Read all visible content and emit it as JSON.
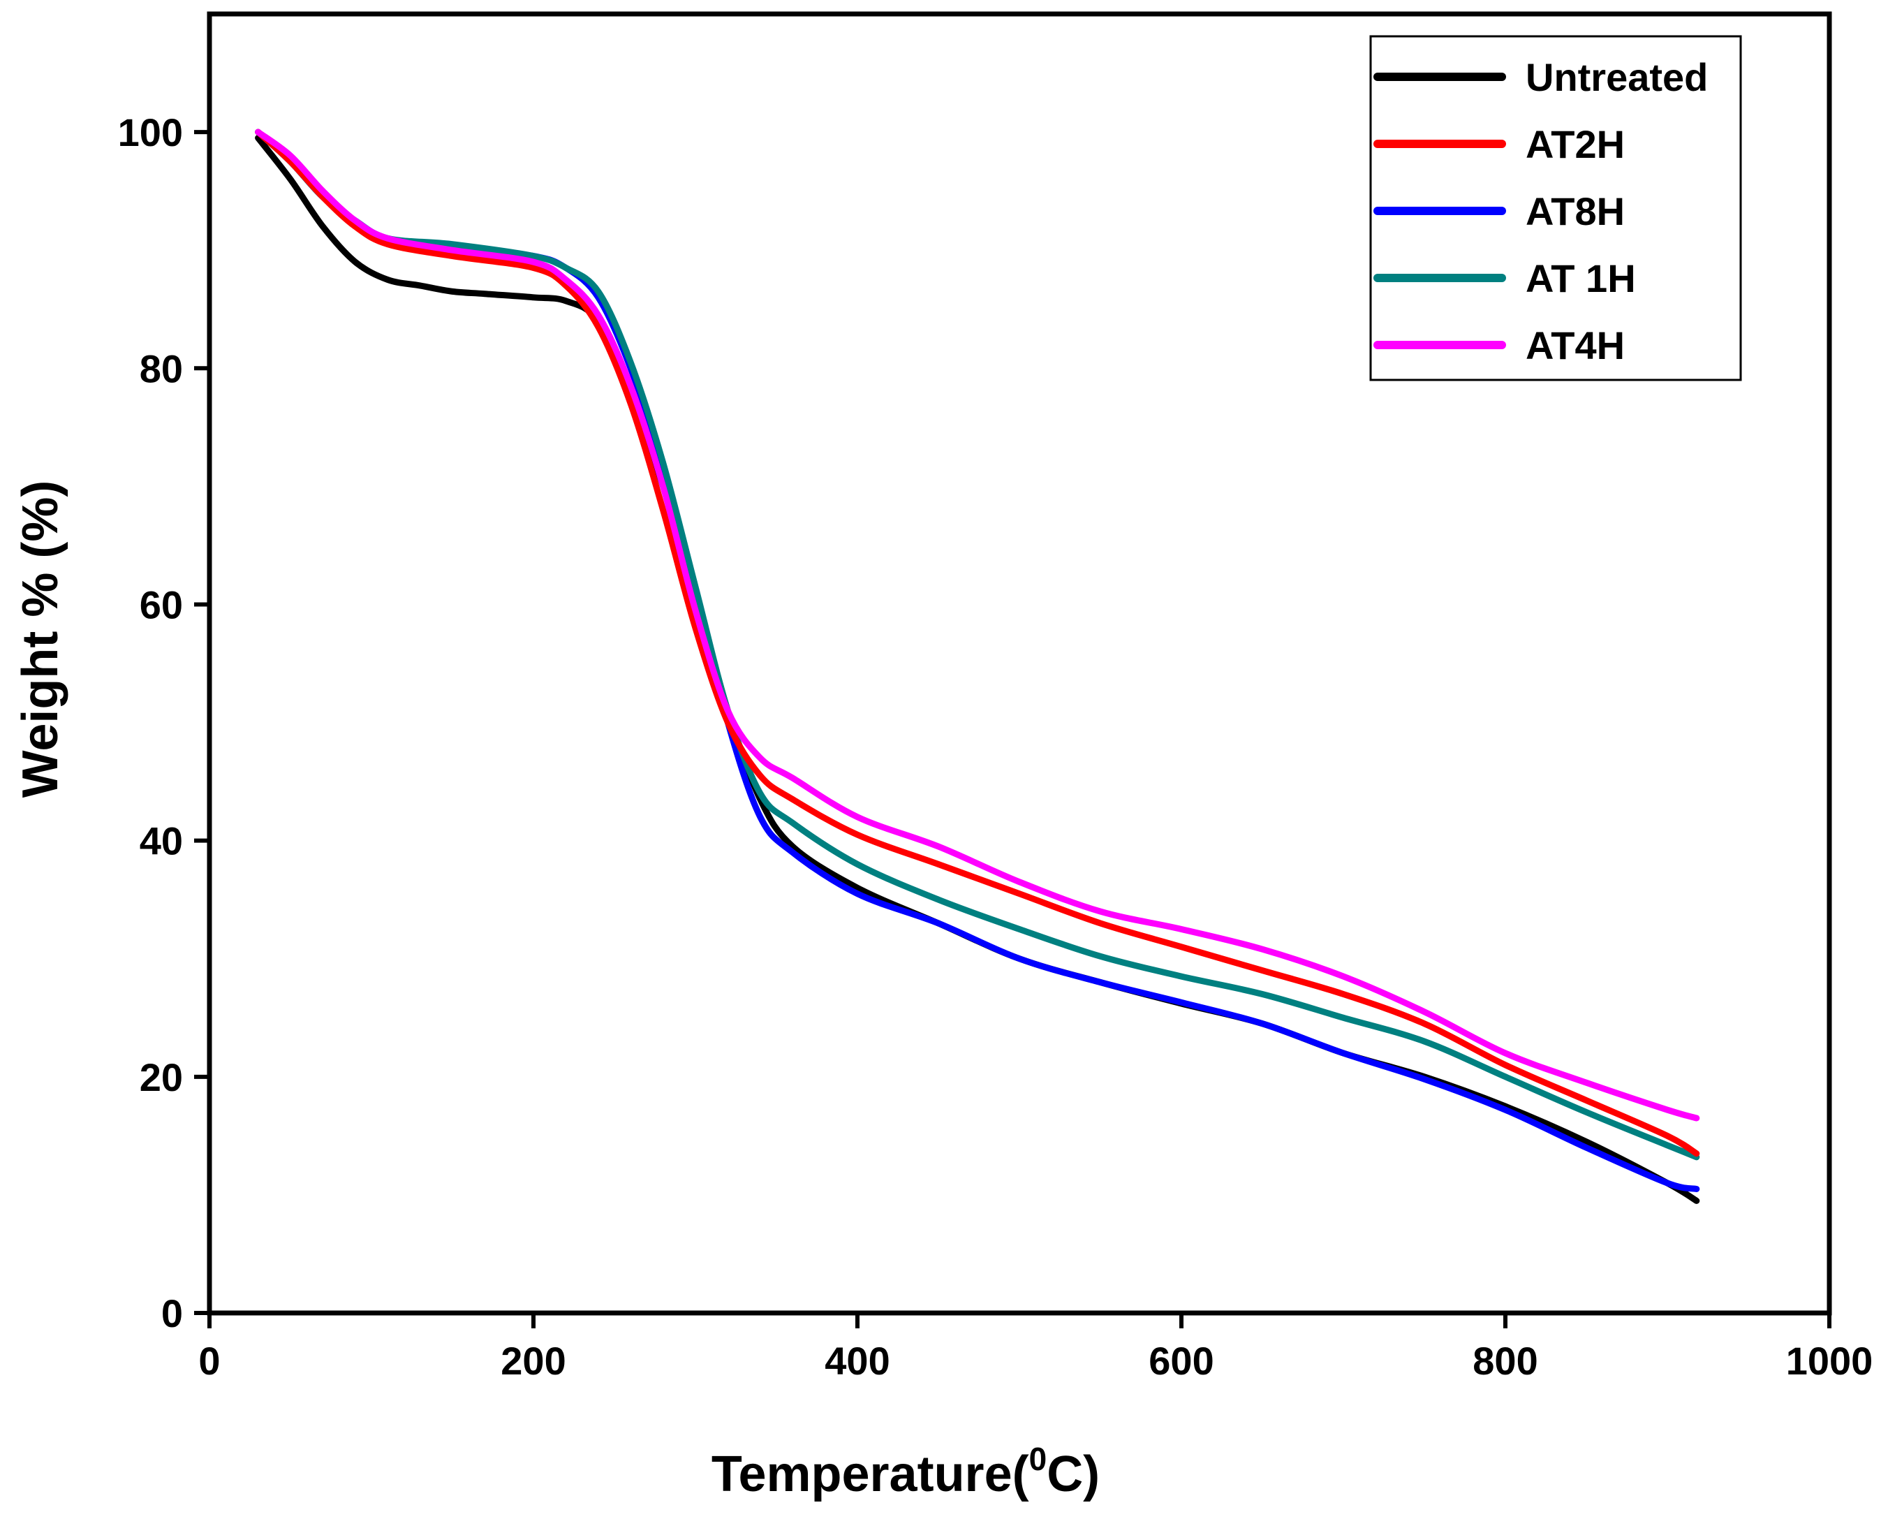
{
  "chart_data": {
    "type": "line",
    "title": "",
    "xlabel": "Temperature(",
    "xlabel_sup": "0",
    "xlabel_unit": "C)",
    "ylabel": "Weight % (%)",
    "xlim": [
      0,
      1000
    ],
    "ylim": [
      0,
      110
    ],
    "xticks": [
      0,
      200,
      400,
      600,
      800,
      1000
    ],
    "yticks": [
      0,
      20,
      40,
      60,
      80,
      100
    ],
    "legend_position": "top-right",
    "grid": false,
    "series": [
      {
        "name": "Untreated",
        "color": "#000000",
        "x": [
          30,
          50,
          70,
          90,
          110,
          130,
          150,
          170,
          200,
          220,
          240,
          260,
          280,
          300,
          320,
          340,
          360,
          400,
          450,
          500,
          550,
          600,
          650,
          700,
          750,
          800,
          850,
          900,
          918
        ],
        "y": [
          99.5,
          96,
          92,
          89,
          87.5,
          87,
          86.5,
          86.3,
          86,
          85.7,
          84,
          78,
          70,
          61,
          51,
          43.5,
          39.5,
          36,
          33,
          30,
          28,
          26.2,
          24.5,
          22,
          20,
          17.5,
          14.5,
          11,
          9.5
        ]
      },
      {
        "name": "AT2H",
        "color": "#ff0000",
        "x": [
          30,
          50,
          70,
          90,
          110,
          150,
          200,
          220,
          240,
          260,
          280,
          300,
          320,
          340,
          360,
          400,
          450,
          500,
          550,
          600,
          650,
          700,
          750,
          800,
          850,
          900,
          918
        ],
        "y": [
          100,
          97.5,
          94.5,
          92,
          90.5,
          89.5,
          88.5,
          87,
          83.5,
          77,
          68,
          58,
          50,
          45.5,
          43.5,
          40.5,
          38,
          35.5,
          33,
          31,
          29,
          27,
          24.5,
          21,
          18,
          15,
          13.5
        ]
      },
      {
        "name": "AT8H",
        "color": "#0000ff",
        "x": [
          30,
          50,
          70,
          90,
          110,
          150,
          200,
          220,
          240,
          260,
          280,
          300,
          320,
          340,
          360,
          400,
          450,
          500,
          550,
          600,
          650,
          700,
          750,
          800,
          850,
          900,
          918
        ],
        "y": [
          100,
          97.5,
          94.5,
          92.5,
          91,
          90.3,
          89.5,
          88.5,
          86,
          80,
          71.5,
          61,
          50,
          42,
          39,
          35.5,
          33,
          30,
          28,
          26.3,
          24.5,
          22,
          19.8,
          17.2,
          14,
          11,
          10.5
        ]
      },
      {
        "name": "AT 1H",
        "color": "#008080",
        "x": [
          30,
          50,
          70,
          90,
          110,
          150,
          200,
          220,
          240,
          260,
          280,
          300,
          320,
          340,
          360,
          400,
          450,
          500,
          550,
          600,
          650,
          700,
          750,
          800,
          850,
          900,
          918
        ],
        "y": [
          100,
          97.5,
          94.5,
          92.5,
          91,
          90.5,
          89.5,
          88.5,
          86.5,
          80.5,
          72,
          61.5,
          51,
          44,
          41.5,
          38,
          35,
          32.5,
          30.2,
          28.5,
          27,
          25,
          23,
          20,
          17,
          14.2,
          13.2
        ]
      },
      {
        "name": "AT4H",
        "color": "#ff00ff",
        "x": [
          30,
          50,
          70,
          90,
          110,
          150,
          200,
          220,
          240,
          260,
          280,
          300,
          320,
          340,
          360,
          400,
          450,
          500,
          550,
          600,
          650,
          700,
          750,
          800,
          850,
          900,
          918
        ],
        "y": [
          100,
          98,
          95,
          92.5,
          91,
          90,
          89,
          87.5,
          84.5,
          78.5,
          70,
          59.5,
          51,
          47,
          45.3,
          42,
          39.5,
          36.5,
          34,
          32.5,
          30.8,
          28.5,
          25.5,
          22,
          19.5,
          17.2,
          16.5
        ]
      }
    ]
  }
}
